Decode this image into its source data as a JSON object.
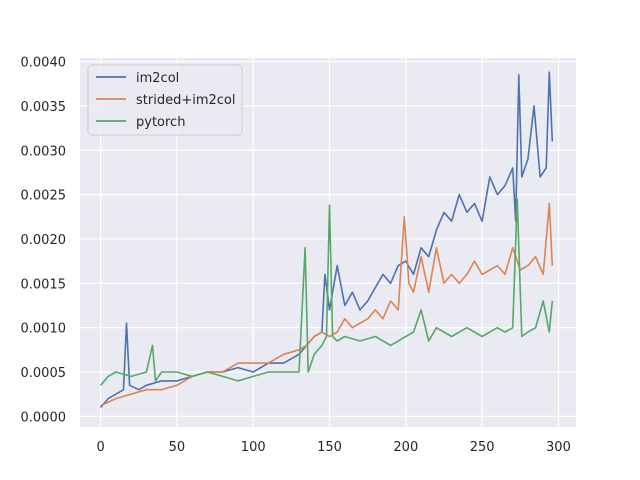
{
  "chart_data": {
    "type": "line",
    "title": "",
    "xlabel": "",
    "ylabel": "",
    "xlim": [
      -13.5,
      311.5
    ],
    "ylim": [
      -0.00012,
      0.00404
    ],
    "grid": true,
    "background": "#EAEAF2",
    "legend": {
      "placement": "top-left"
    },
    "x_ticks": [
      0,
      50,
      100,
      150,
      200,
      250,
      300
    ],
    "x_tick_labels": [
      "0",
      "50",
      "100",
      "150",
      "200",
      "250",
      "300"
    ],
    "y_ticks": [
      0,
      0.0005,
      0.001,
      0.0015,
      0.002,
      0.0025,
      0.003,
      0.0035,
      0.004
    ],
    "y_tick_labels": [
      "0.0000",
      "0.0005",
      "0.0010",
      "0.0015",
      "0.0020",
      "0.0025",
      "0.0030",
      "0.0035",
      "0.0040"
    ],
    "series": [
      {
        "name": "im2col",
        "color": "#4C72B0",
        "points": [
          [
            0,
            0.0001
          ],
          [
            5,
            0.0002
          ],
          [
            10,
            0.00025
          ],
          [
            15,
            0.0003
          ],
          [
            17,
            0.00105
          ],
          [
            19,
            0.00035
          ],
          [
            25,
            0.0003
          ],
          [
            30,
            0.00035
          ],
          [
            40,
            0.0004
          ],
          [
            50,
            0.0004
          ],
          [
            60,
            0.00045
          ],
          [
            70,
            0.0005
          ],
          [
            80,
            0.0005
          ],
          [
            90,
            0.00055
          ],
          [
            100,
            0.0005
          ],
          [
            110,
            0.0006
          ],
          [
            120,
            0.0006
          ],
          [
            130,
            0.0007
          ],
          [
            135,
            0.0008
          ],
          [
            140,
            0.0009
          ],
          [
            145,
            0.00095
          ],
          [
            147,
            0.0016
          ],
          [
            150,
            0.0012
          ],
          [
            155,
            0.0017
          ],
          [
            160,
            0.00125
          ],
          [
            165,
            0.0014
          ],
          [
            170,
            0.0012
          ],
          [
            175,
            0.0013
          ],
          [
            180,
            0.00145
          ],
          [
            185,
            0.0016
          ],
          [
            190,
            0.0015
          ],
          [
            195,
            0.0017
          ],
          [
            200,
            0.00175
          ],
          [
            205,
            0.0016
          ],
          [
            210,
            0.0019
          ],
          [
            215,
            0.0018
          ],
          [
            220,
            0.0021
          ],
          [
            225,
            0.0023
          ],
          [
            230,
            0.0022
          ],
          [
            235,
            0.0025
          ],
          [
            240,
            0.0023
          ],
          [
            245,
            0.0024
          ],
          [
            250,
            0.0022
          ],
          [
            255,
            0.0027
          ],
          [
            260,
            0.0025
          ],
          [
            265,
            0.0026
          ],
          [
            270,
            0.0028
          ],
          [
            272,
            0.0022
          ],
          [
            274,
            0.00385
          ],
          [
            276,
            0.0027
          ],
          [
            280,
            0.0029
          ],
          [
            284,
            0.0035
          ],
          [
            288,
            0.0027
          ],
          [
            292,
            0.0028
          ],
          [
            294,
            0.00388
          ],
          [
            296,
            0.0031
          ]
        ]
      },
      {
        "name": "strided+im2col",
        "color": "#DD8452",
        "points": [
          [
            0,
            0.00012
          ],
          [
            10,
            0.0002
          ],
          [
            20,
            0.00025
          ],
          [
            30,
            0.0003
          ],
          [
            40,
            0.0003
          ],
          [
            50,
            0.00035
          ],
          [
            60,
            0.00045
          ],
          [
            70,
            0.0005
          ],
          [
            80,
            0.0005
          ],
          [
            90,
            0.0006
          ],
          [
            100,
            0.0006
          ],
          [
            110,
            0.0006
          ],
          [
            120,
            0.0007
          ],
          [
            130,
            0.00075
          ],
          [
            135,
            0.0008
          ],
          [
            140,
            0.0009
          ],
          [
            145,
            0.00095
          ],
          [
            150,
            0.0009
          ],
          [
            155,
            0.00095
          ],
          [
            160,
            0.0011
          ],
          [
            165,
            0.001
          ],
          [
            170,
            0.00105
          ],
          [
            175,
            0.0011
          ],
          [
            180,
            0.0012
          ],
          [
            185,
            0.0011
          ],
          [
            190,
            0.0013
          ],
          [
            195,
            0.0012
          ],
          [
            199,
            0.00225
          ],
          [
            202,
            0.0015
          ],
          [
            205,
            0.0014
          ],
          [
            210,
            0.0018
          ],
          [
            215,
            0.0014
          ],
          [
            220,
            0.0019
          ],
          [
            225,
            0.0015
          ],
          [
            230,
            0.0016
          ],
          [
            235,
            0.0015
          ],
          [
            240,
            0.0016
          ],
          [
            245,
            0.00175
          ],
          [
            250,
            0.0016
          ],
          [
            255,
            0.00165
          ],
          [
            260,
            0.0017
          ],
          [
            265,
            0.0016
          ],
          [
            270,
            0.0019
          ],
          [
            275,
            0.00165
          ],
          [
            280,
            0.0017
          ],
          [
            285,
            0.0018
          ],
          [
            290,
            0.0016
          ],
          [
            294,
            0.0024
          ],
          [
            296,
            0.0017
          ]
        ]
      },
      {
        "name": "pytorch",
        "color": "#55A868",
        "points": [
          [
            0,
            0.00035
          ],
          [
            5,
            0.00045
          ],
          [
            10,
            0.0005
          ],
          [
            20,
            0.00045
          ],
          [
            30,
            0.0005
          ],
          [
            34,
            0.0008
          ],
          [
            36,
            0.0004
          ],
          [
            40,
            0.0005
          ],
          [
            50,
            0.0005
          ],
          [
            60,
            0.00045
          ],
          [
            70,
            0.0005
          ],
          [
            80,
            0.00045
          ],
          [
            90,
            0.0004
          ],
          [
            100,
            0.00045
          ],
          [
            110,
            0.0005
          ],
          [
            120,
            0.0005
          ],
          [
            130,
            0.0005
          ],
          [
            134,
            0.0019
          ],
          [
            136,
            0.0005
          ],
          [
            140,
            0.0007
          ],
          [
            145,
            0.0008
          ],
          [
            148,
            0.0009
          ],
          [
            150,
            0.00238
          ],
          [
            152,
            0.0009
          ],
          [
            155,
            0.00085
          ],
          [
            160,
            0.0009
          ],
          [
            170,
            0.00085
          ],
          [
            180,
            0.0009
          ],
          [
            190,
            0.0008
          ],
          [
            200,
            0.0009
          ],
          [
            205,
            0.00095
          ],
          [
            210,
            0.0012
          ],
          [
            215,
            0.00085
          ],
          [
            220,
            0.001
          ],
          [
            230,
            0.0009
          ],
          [
            240,
            0.001
          ],
          [
            250,
            0.0009
          ],
          [
            260,
            0.001
          ],
          [
            265,
            0.00095
          ],
          [
            270,
            0.001
          ],
          [
            273,
            0.00245
          ],
          [
            276,
            0.0009
          ],
          [
            280,
            0.00095
          ],
          [
            285,
            0.001
          ],
          [
            290,
            0.0013
          ],
          [
            294,
            0.00095
          ],
          [
            296,
            0.0013
          ]
        ]
      }
    ]
  }
}
